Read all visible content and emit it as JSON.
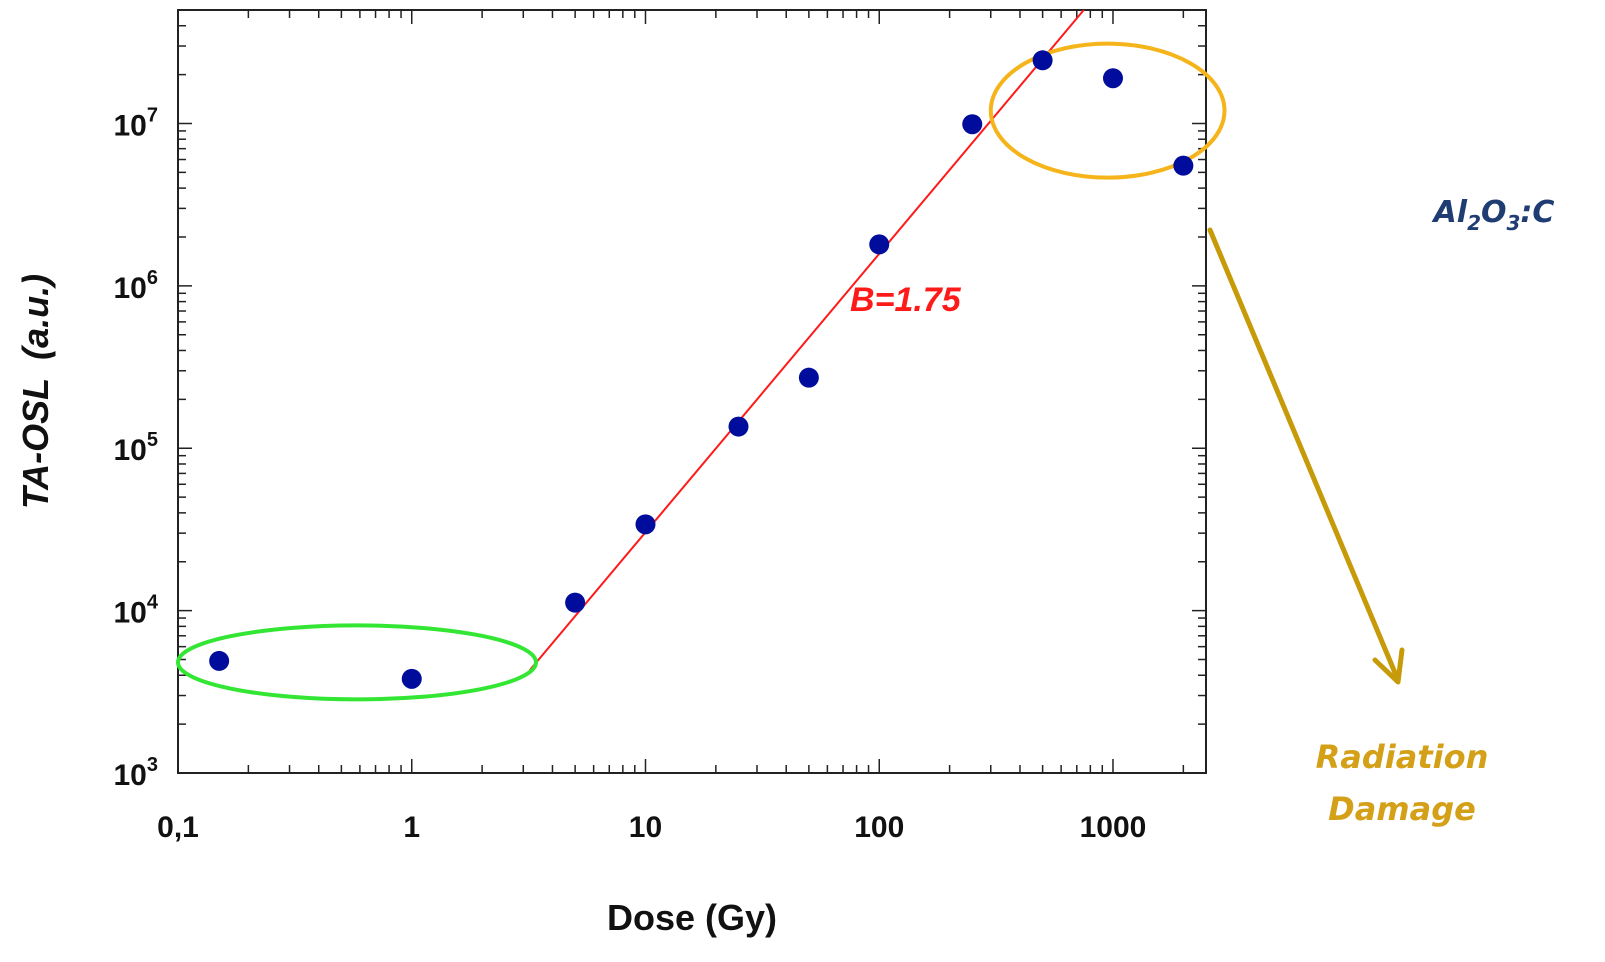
{
  "chart_data": {
    "type": "scatter",
    "xscale": "log",
    "yscale": "log",
    "xlim": [
      0.1,
      2500
    ],
    "ylim": [
      1000,
      50000000
    ],
    "xlabel": "Dose (Gy)",
    "ylabel_main": "TA-OSL",
    "ylabel_unit": "(a.u.)",
    "x_ticks": [
      {
        "value": 0.1,
        "label": "0,1"
      },
      {
        "value": 1,
        "label": "1"
      },
      {
        "value": 10,
        "label": "10"
      },
      {
        "value": 100,
        "label": "100"
      },
      {
        "value": 1000,
        "label": "1000"
      }
    ],
    "y_ticks": [
      {
        "value": 1000,
        "base": "10",
        "exp": "3"
      },
      {
        "value": 10000,
        "base": "10",
        "exp": "4"
      },
      {
        "value": 100000,
        "base": "10",
        "exp": "5"
      },
      {
        "value": 1000000,
        "base": "10",
        "exp": "6"
      },
      {
        "value": 10000000,
        "base": "10",
        "exp": "7"
      }
    ],
    "series": [
      {
        "points": [
          {
            "x": 0.15,
            "y": 4900
          },
          {
            "x": 1,
            "y": 3800
          },
          {
            "x": 5,
            "y": 11200
          },
          {
            "x": 10,
            "y": 34000
          },
          {
            "x": 25,
            "y": 136000
          },
          {
            "x": 50,
            "y": 272000
          },
          {
            "x": 100,
            "y": 1800000
          },
          {
            "x": 250,
            "y": 9900000
          },
          {
            "x": 500,
            "y": 24500000
          },
          {
            "x": 1000,
            "y": 19000000
          },
          {
            "x": 2000,
            "y": 5500000
          }
        ]
      }
    ],
    "fit_line": {
      "x": [
        3.2,
        750
      ],
      "y": [
        4300,
        50000000
      ],
      "label": "B=1.75"
    },
    "annotations": {
      "low_dose_ellipse": {
        "x_range": [
          0.1,
          3.4
        ],
        "y_center": 4800
      },
      "high_dose_ellipse": {
        "x_range": [
          300,
          3000
        ],
        "y_center": 12000000
      }
    },
    "material_label": {
      "base1": "Al",
      "sub1": "2",
      "base2": "O",
      "sub2": "3",
      "suffix": ":C"
    },
    "damage_label": {
      "line1": "Radiation",
      "line2": "Damage"
    },
    "colors": {
      "points": "#000c9c",
      "fit": "#ff1a1a",
      "low_ellipse": "#33e633",
      "high_ellipse": "#f5b41a",
      "arrow": "#c79a0a",
      "material": "#1f3d73",
      "damage": "#d4a017"
    }
  }
}
